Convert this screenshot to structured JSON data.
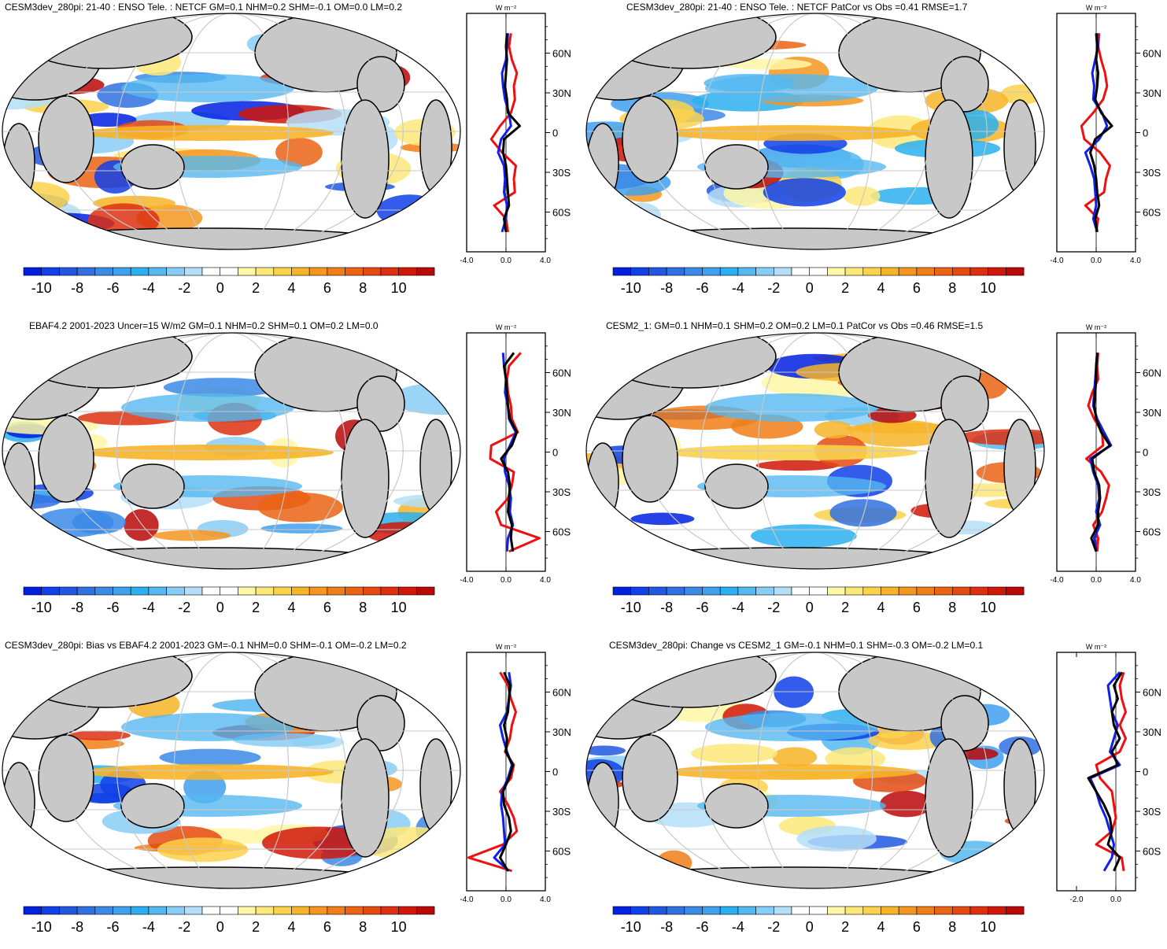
{
  "figure": {
    "colorbar_levels": [
      -11,
      -10,
      -9,
      -8,
      -7,
      -6,
      -5,
      -4,
      -3,
      -2,
      -1,
      0,
      1,
      2,
      3,
      4,
      5,
      6,
      7,
      8,
      9,
      10,
      11
    ],
    "colorbar_labels": [
      "-10",
      "-8",
      "-6",
      "-4",
      "-2",
      "0",
      "2",
      "4",
      "6",
      "8",
      "10"
    ],
    "colorbar_colors": [
      "#0020e0",
      "#1040e8",
      "#2058e0",
      "#3070e0",
      "#3a8ae6",
      "#40a0ee",
      "#2ab0f0",
      "#55b8f0",
      "#88cdf5",
      "#b4def8",
      "#ffffff",
      "#ffffff",
      "#fff7a8",
      "#fde87a",
      "#fbd24c",
      "#f7b428",
      "#f49620",
      "#f07e18",
      "#ea6414",
      "#e44a10",
      "#dc3010",
      "#d01808",
      "#b80808"
    ],
    "lat_ticks": [
      "60N",
      "30N",
      "0",
      "30S",
      "60S"
    ]
  },
  "panels": [
    {
      "title": "CESM3dev_280pi: 21-40 : ENSO Tele. : NETCF GM=0.1 NHM=0.2 SHM=-0.1 OM=0.0 LM=0.2",
      "units": "W m⁻²",
      "xticks": [
        "-4.0",
        "0.0",
        "4.0"
      ]
    },
    {
      "title": "CESM3dev_280pi: 21-40 : ENSO Tele. : NETCF PatCor vs Obs =0.41 RMSE=1.7",
      "units": "W m⁻²",
      "xticks": [
        "-4.0",
        "0.0",
        "4.0"
      ]
    },
    {
      "title": "EBAF4.2 2001-2023 Uncer=15 W/m2 GM=0.1 NHM=0.2 SHM=0.1 OM=0.2 LM=0.0",
      "units": "W m⁻²",
      "xticks": [
        "-4.0",
        "0.0",
        "4.0"
      ]
    },
    {
      "title": "CESM2_1: GM=0.1 NHM=0.1 SHM=0.2 OM=0.2 LM=0.1 PatCor vs Obs =0.46 RMSE=1.5",
      "units": "W m⁻²",
      "xticks": [
        "-4.0",
        "0.0",
        "4.0"
      ]
    },
    {
      "title": "CESM3dev_280pi: Bias vs EBAF4.2 2001-2023 GM=-0.1 NHM=0.0 SHM=-0.1 OM=-0.2 LM=0.2",
      "units": "W m⁻²",
      "xticks": [
        "-4.0",
        "0.0",
        "4.0"
      ]
    },
    {
      "title": "CESM3dev_280pi: Change vs CESM2_1 GM=-0.1 NHM=0.1 SHM=-0.3 OM=-0.2 LM=0.1",
      "units": "W m⁻²",
      "xticks": [
        "-2.0",
        "0.0"
      ]
    }
  ],
  "chart_data": {
    "type": "heatmap",
    "description_series": [
      "zonal mean blue",
      "zonal mean red",
      "zonal mean black"
    ],
    "profile_lat": [
      75,
      65,
      55,
      45,
      35,
      25,
      15,
      5,
      -5,
      -15,
      -25,
      -35,
      -45,
      -55,
      -65,
      -75
    ],
    "profiles": [
      {
        "blue": [
          0.2,
          0.1,
          0,
          -0.4,
          -0.3,
          -0.1,
          0.3,
          0.5,
          -0.5,
          -0.8,
          -0.2,
          -0.1,
          -0.2,
          0.1,
          0,
          -0.4
        ],
        "red": [
          0.5,
          0.3,
          0.6,
          1.1,
          0.8,
          0.9,
          0.5,
          -0.6,
          -1.5,
          -0.4,
          1.0,
          0.8,
          0.9,
          -1.2,
          0,
          0.2
        ],
        "black": [
          0.1,
          0,
          0.1,
          0,
          -0.1,
          0.1,
          0.2,
          1.4,
          -0.2,
          -0.3,
          0,
          0.1,
          0.2,
          0.3,
          -0.2,
          0
        ]
      },
      {
        "blue": [
          0.1,
          0.2,
          -0.1,
          -0.4,
          -0.2,
          -0.3,
          0.6,
          1.1,
          0.3,
          -1.1,
          -0.6,
          -0.2,
          -0.1,
          0,
          -0.3,
          0.1
        ],
        "red": [
          0.3,
          0.2,
          0.5,
          0.9,
          1.1,
          0.7,
          -0.3,
          -1.5,
          -1.2,
          0.4,
          1.4,
          1.0,
          0.8,
          -1.1,
          0.2,
          0
        ],
        "black": [
          0,
          0.1,
          0,
          0.2,
          0.1,
          -0.1,
          0.5,
          1.6,
          -0.1,
          -0.6,
          -0.2,
          0,
          0.1,
          0.3,
          -0.1,
          0.1
        ]
      },
      {
        "blue": [
          -0.3,
          -0.2,
          0,
          -0.1,
          0.2,
          0.3,
          1.0,
          0.4,
          -0.2,
          -0.1,
          0.3,
          0.5,
          0.4,
          0.7,
          0.2,
          0.1
        ],
        "red": [
          1.5,
          0.3,
          0.1,
          0.2,
          0.5,
          0.6,
          1.2,
          -1.5,
          -1.6,
          0.8,
          0.6,
          0.2,
          -1.0,
          -0.5,
          3.4,
          0.3
        ],
        "black": [
          0.8,
          -0.2,
          0,
          0.1,
          0.2,
          0.4,
          1.1,
          0.6,
          -0.5,
          0.2,
          0.4,
          0.3,
          0.2,
          0.6,
          0.5,
          0.7
        ]
      },
      {
        "blue": [
          0.1,
          0,
          -0.1,
          -0.2,
          -0.3,
          0.1,
          0.8,
          1.5,
          -0.6,
          -0.3,
          0.2,
          0.3,
          0,
          0.4,
          -0.2,
          0
        ],
        "red": [
          0.2,
          0.1,
          0.2,
          -0.4,
          -0.8,
          -0.2,
          0.6,
          0.7,
          -1.0,
          0.5,
          1.3,
          1.0,
          0.6,
          -0.3,
          0.2,
          0.1
        ],
        "black": [
          0.1,
          0,
          0,
          -0.1,
          -0.2,
          0,
          0.5,
          1.4,
          -0.4,
          -0.2,
          0.3,
          0.4,
          0.2,
          0.2,
          -0.5,
          0
        ]
      },
      {
        "blue": [
          0.3,
          0.5,
          0.3,
          0.1,
          -0.6,
          -0.3,
          0.1,
          0.6,
          0.2,
          -0.4,
          -0.5,
          -0.3,
          -0.2,
          -0.1,
          -1.2,
          0.3
        ],
        "red": [
          -0.6,
          0.2,
          0.5,
          1.0,
          0.6,
          0.4,
          -0.1,
          0.8,
          0.5,
          -0.6,
          0.2,
          0.8,
          1.1,
          -0.3,
          -3.8,
          0.6
        ],
        "black": [
          -0.2,
          0.4,
          0.3,
          0.2,
          -0.2,
          0.1,
          0,
          0.7,
          0.3,
          -0.3,
          -0.2,
          0.3,
          0.5,
          0,
          -0.6,
          0.2
        ]
      },
      {
        "blue": [
          0.2,
          -0.4,
          -0.3,
          -0.2,
          0.1,
          -0.1,
          -0.3,
          0.2,
          -1.3,
          -1.0,
          -0.8,
          -0.5,
          -0.3,
          -0.1,
          -0.2,
          -0.6
        ],
        "red": [
          0.4,
          0.2,
          0.3,
          0.5,
          0.2,
          0.5,
          0.2,
          -1.0,
          -0.8,
          -0.2,
          -0.1,
          0,
          -0.2,
          -1.0,
          0.3,
          0.4
        ],
        "black": [
          0.3,
          -0.1,
          0.1,
          -0.2,
          -0.1,
          0.2,
          -0.2,
          0.1,
          -1.4,
          -1.0,
          -0.6,
          -0.3,
          -0.2,
          -0.4,
          0.2,
          -0.1
        ]
      }
    ]
  }
}
